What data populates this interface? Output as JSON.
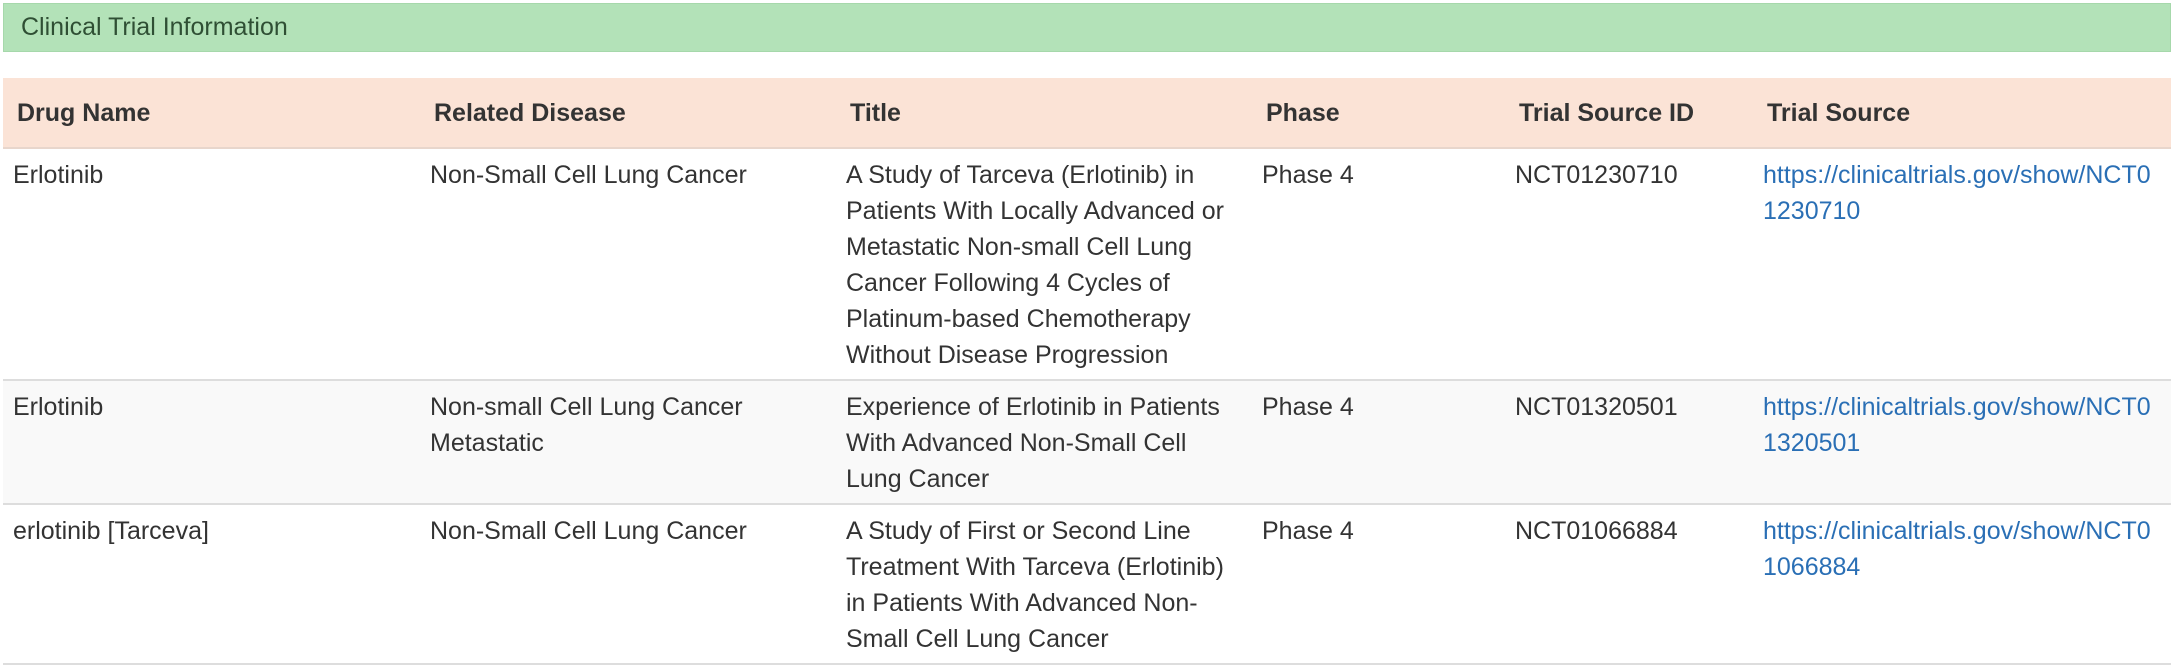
{
  "panel": {
    "title": "Clinical Trial Information"
  },
  "table": {
    "columns": [
      "Drug Name",
      "Related Disease",
      "Title",
      "Phase",
      "Trial Source ID",
      "Trial Source"
    ],
    "rows": [
      {
        "drug_name": "Erlotinib",
        "related_disease": "Non-Small Cell Lung Cancer",
        "title": "A Study of Tarceva (Erlotinib) in Patients With Locally Advanced or Metastatic Non-small Cell Lung Cancer Following 4 Cycles of Platinum-based Chemotherapy Without Disease Progression",
        "phase": "Phase 4",
        "trial_source_id": "NCT01230710",
        "trial_source": "https://clinicaltrials.gov/show/NCT01230710"
      },
      {
        "drug_name": "Erlotinib",
        "related_disease": "Non-small Cell Lung Cancer Metastatic",
        "title": "Experience of Erlotinib in Patients With Advanced Non-Small Cell Lung Cancer",
        "phase": "Phase 4",
        "trial_source_id": "NCT01320501",
        "trial_source": "https://clinicaltrials.gov/show/NCT01320501"
      },
      {
        "drug_name": "erlotinib [Tarceva]",
        "related_disease": "Non-Small Cell Lung Cancer",
        "title": "A Study of First or Second Line Treatment With Tarceva (Erlotinib) in Patients With Advanced Non-Small Cell Lung Cancer",
        "phase": "Phase 4",
        "trial_source_id": "NCT01066884",
        "trial_source": "https://clinicaltrials.gov/show/NCT01066884"
      }
    ]
  },
  "colors": {
    "heading_bg": "#b3e2b8",
    "table_header_bg": "#fbe3d6",
    "link": "#2a6fb5"
  }
}
